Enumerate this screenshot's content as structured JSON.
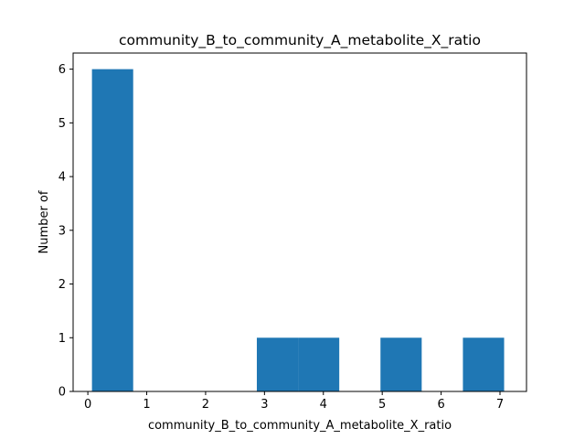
{
  "chart_data": {
    "type": "bar",
    "title": "community_B_to_community_A_metabolite_X_ratio",
    "xlabel": "community_B_to_community_A_metabolite_X_ratio",
    "ylabel": "Number of",
    "xlim": [
      -0.25,
      7.45
    ],
    "ylim": [
      0,
      6.3
    ],
    "xticks": [
      0,
      1,
      2,
      3,
      4,
      5,
      6,
      7
    ],
    "yticks": [
      0,
      1,
      2,
      3,
      4,
      5,
      6
    ],
    "bins": [
      {
        "x0": 0.07,
        "x1": 0.77,
        "count": 6
      },
      {
        "x0": 0.77,
        "x1": 1.47,
        "count": 0
      },
      {
        "x0": 1.47,
        "x1": 2.17,
        "count": 0
      },
      {
        "x0": 2.17,
        "x1": 2.87,
        "count": 0
      },
      {
        "x0": 2.87,
        "x1": 3.57,
        "count": 1
      },
      {
        "x0": 3.57,
        "x1": 4.27,
        "count": 1
      },
      {
        "x0": 4.27,
        "x1": 4.97,
        "count": 0
      },
      {
        "x0": 4.97,
        "x1": 5.67,
        "count": 1
      },
      {
        "x0": 5.67,
        "x1": 6.37,
        "count": 0
      },
      {
        "x0": 6.37,
        "x1": 7.07,
        "count": 1
      }
    ],
    "bar_color": "#1f77b4",
    "grid": false,
    "legend": "none"
  }
}
